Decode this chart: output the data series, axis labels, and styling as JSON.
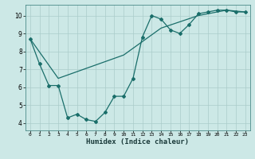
{
  "xlabel": "Humidex (Indice chaleur)",
  "ylabel": "",
  "bg_color": "#cce8e6",
  "grid_color": "#aaccca",
  "line_color": "#1a6e6a",
  "xlim": [
    -0.5,
    23.5
  ],
  "ylim": [
    3.6,
    10.6
  ],
  "xticks": [
    0,
    1,
    2,
    3,
    4,
    5,
    6,
    7,
    8,
    9,
    10,
    11,
    12,
    13,
    14,
    15,
    16,
    17,
    18,
    19,
    20,
    21,
    22,
    23
  ],
  "yticks": [
    4,
    5,
    6,
    7,
    8,
    9,
    10
  ],
  "line1_x": [
    0,
    1,
    2,
    3,
    4,
    5,
    6,
    7,
    8,
    9,
    10,
    11,
    12,
    13,
    14,
    15,
    16,
    17,
    18,
    19,
    20,
    21,
    22,
    23
  ],
  "line1_y": [
    8.7,
    7.3,
    6.1,
    6.1,
    4.3,
    4.5,
    4.2,
    4.1,
    4.6,
    5.5,
    5.5,
    6.5,
    8.8,
    10.0,
    9.8,
    9.2,
    9.0,
    9.5,
    10.1,
    10.2,
    10.3,
    10.3,
    10.2,
    10.2
  ],
  "line2_x": [
    0,
    3,
    10,
    14,
    18,
    21,
    23
  ],
  "line2_y": [
    8.7,
    6.5,
    7.8,
    9.3,
    10.0,
    10.3,
    10.2
  ]
}
